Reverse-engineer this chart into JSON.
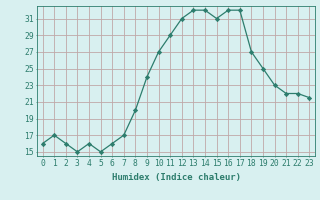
{
  "x": [
    0,
    1,
    2,
    3,
    4,
    5,
    6,
    7,
    8,
    9,
    10,
    11,
    12,
    13,
    14,
    15,
    16,
    17,
    18,
    19,
    20,
    21,
    22,
    23
  ],
  "y": [
    16,
    17,
    16,
    15,
    16,
    15,
    16,
    17,
    20,
    24,
    27,
    29,
    31,
    32,
    32,
    31,
    32,
    32,
    27,
    25,
    23,
    22,
    22,
    21.5
  ],
  "line_color": "#2d7d6d",
  "marker": "D",
  "marker_size": 2.2,
  "bg_color": "#d8f0f0",
  "grid_color": "#c0a8a8",
  "xlabel": "Humidex (Indice chaleur)",
  "xlim": [
    -0.5,
    23.5
  ],
  "ylim": [
    14.5,
    32.5
  ],
  "yticks": [
    15,
    17,
    19,
    21,
    23,
    25,
    27,
    29,
    31
  ],
  "xtick_labels": [
    "0",
    "1",
    "2",
    "3",
    "4",
    "5",
    "6",
    "7",
    "8",
    "9",
    "10",
    "11",
    "12",
    "13",
    "14",
    "15",
    "16",
    "17",
    "18",
    "19",
    "20",
    "21",
    "22",
    "23"
  ],
  "tick_color": "#2d7d6d",
  "label_fontsize": 6.5,
  "tick_fontsize": 5.8
}
